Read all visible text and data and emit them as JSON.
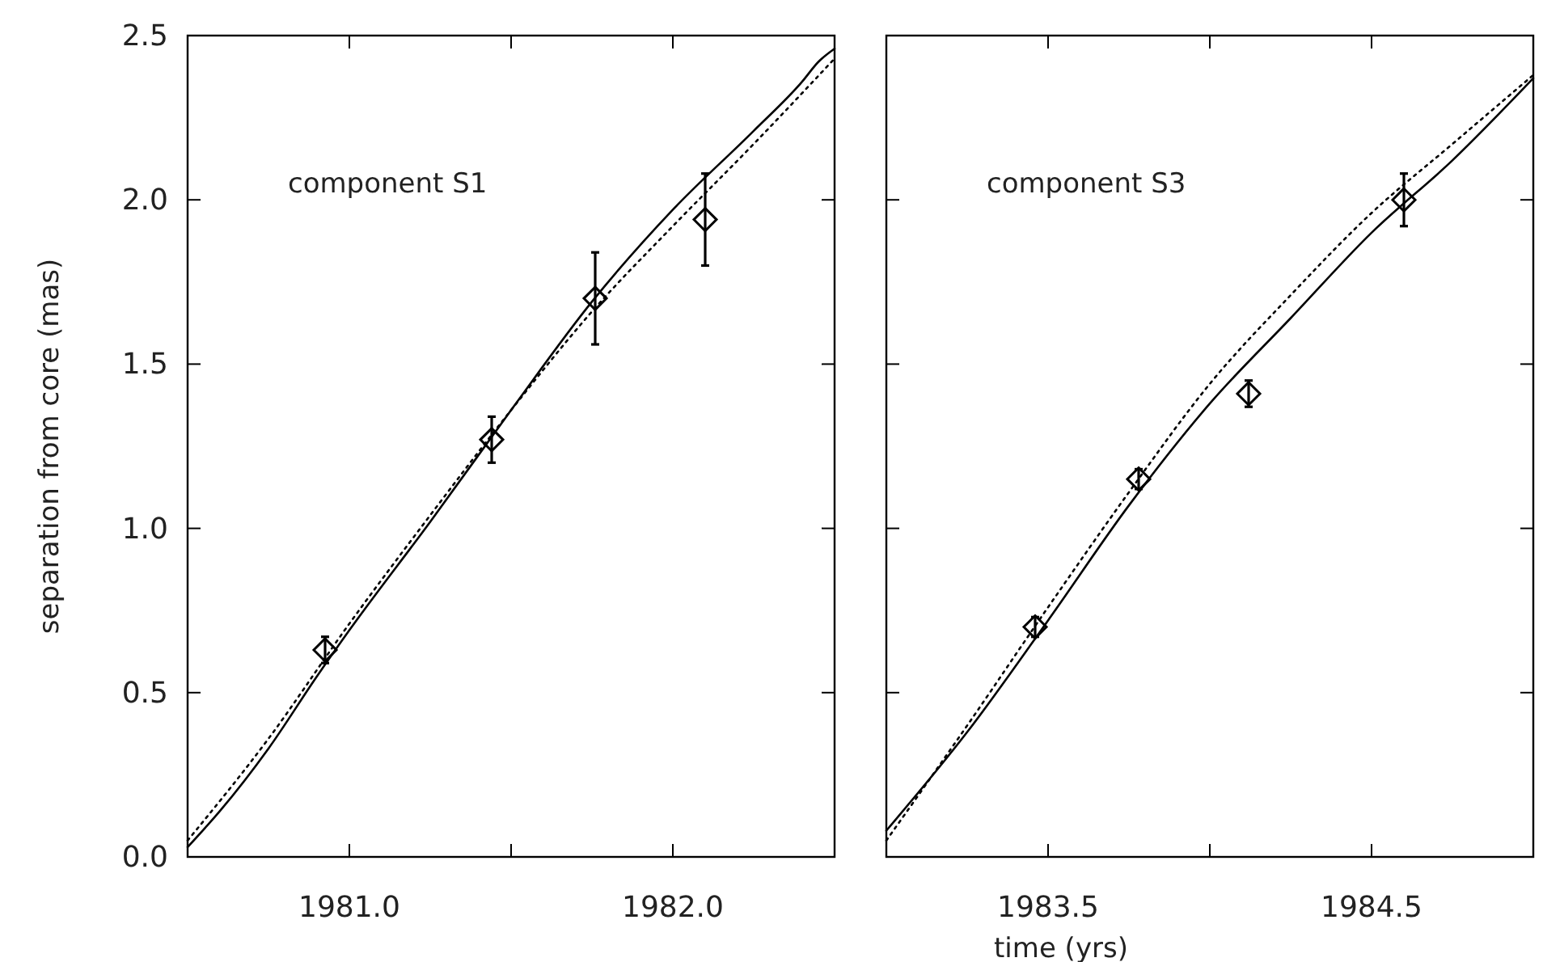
{
  "chart_data": [
    {
      "type": "line",
      "ylabel": "separation from core (mas)",
      "annotations": [
        "component S1"
      ],
      "xlim": [
        1980.5,
        1982.5
      ],
      "xticks": [
        {
          "value": 1981,
          "label": "1981.0"
        },
        {
          "value": 1981.5,
          "label": null
        },
        {
          "value": 1982,
          "label": "1982.0"
        }
      ],
      "ylim": [
        0,
        2.5
      ],
      "yticks": [
        {
          "value": 0,
          "label": "0.0"
        },
        {
          "value": 0.5,
          "label": "0.5"
        },
        {
          "value": 1,
          "label": "1.0"
        },
        {
          "value": 1.5,
          "label": "1.5"
        },
        {
          "value": 2,
          "label": "2.0"
        },
        {
          "value": 2.5,
          "label": "2.5"
        }
      ],
      "series": [
        {
          "color": "#000000",
          "line_style": "solid",
          "x": [
            1980.5,
            1980.6,
            1980.75,
            1980.9,
            1981.0,
            1981.25,
            1981.5,
            1981.75,
            1982.0,
            1982.25,
            1982.4,
            1982.45,
            1982.5
          ],
          "values": [
            0.03,
            0.14,
            0.33,
            0.55,
            0.69,
            1.02,
            1.36,
            1.69,
            1.97,
            2.21,
            2.36,
            2.42,
            2.46
          ]
        },
        {
          "color": "#000000",
          "line_style": "dotted",
          "x": [
            1980.5,
            1980.75,
            1981.0,
            1981.25,
            1981.5,
            1981.75,
            1982.0,
            1982.25,
            1982.5
          ],
          "values": [
            0.05,
            0.36,
            0.71,
            1.04,
            1.36,
            1.66,
            1.92,
            2.17,
            2.43
          ]
        },
        {
          "type": "scatter",
          "color": "#000000",
          "marker": "diamond",
          "x": [
            1980.925,
            1981.44,
            1981.76,
            1982.1
          ],
          "values": [
            0.63,
            1.27,
            1.7,
            1.94
          ],
          "errors": [
            0.04,
            0.07,
            0.14,
            0.14
          ]
        }
      ]
    },
    {
      "type": "line",
      "xlabel": "time (yrs)",
      "annotations": [
        "component S3"
      ],
      "tick_labels": "x",
      "xlim": [
        1983,
        1985
      ],
      "xticks": [
        {
          "value": 1983.5,
          "label": "1983.5"
        },
        {
          "value": 1984,
          "label": null
        },
        {
          "value": 1984.5,
          "label": "1984.5"
        }
      ],
      "ylim": [
        0,
        2.5
      ],
      "yticks": [
        {
          "value": 0,
          "label": null
        },
        {
          "value": 0.5,
          "label": null
        },
        {
          "value": 1,
          "label": null
        },
        {
          "value": 1.5,
          "label": null
        },
        {
          "value": 2,
          "label": null
        },
        {
          "value": 2.5,
          "label": null
        }
      ],
      "series": [
        {
          "color": "#000000",
          "line_style": "solid",
          "x": [
            1983.0,
            1983.25,
            1983.5,
            1983.75,
            1984.0,
            1984.25,
            1984.5,
            1984.75,
            1985.0
          ],
          "values": [
            0.08,
            0.38,
            0.72,
            1.07,
            1.38,
            1.64,
            1.9,
            2.12,
            2.37
          ]
        },
        {
          "color": "#000000",
          "line_style": "dotted",
          "x": [
            1983.0,
            1983.25,
            1983.5,
            1983.75,
            1984.0,
            1984.25,
            1984.5,
            1984.75,
            1985.0
          ],
          "values": [
            0.05,
            0.4,
            0.76,
            1.11,
            1.44,
            1.71,
            1.96,
            2.17,
            2.38
          ]
        },
        {
          "type": "scatter",
          "color": "#000000",
          "marker": "diamond",
          "x": [
            1983.46,
            1983.78,
            1984.12,
            1984.6
          ],
          "values": [
            0.7,
            1.15,
            1.41,
            2.0
          ],
          "errors": [
            0.03,
            0.03,
            0.04,
            0.08
          ]
        }
      ]
    }
  ]
}
